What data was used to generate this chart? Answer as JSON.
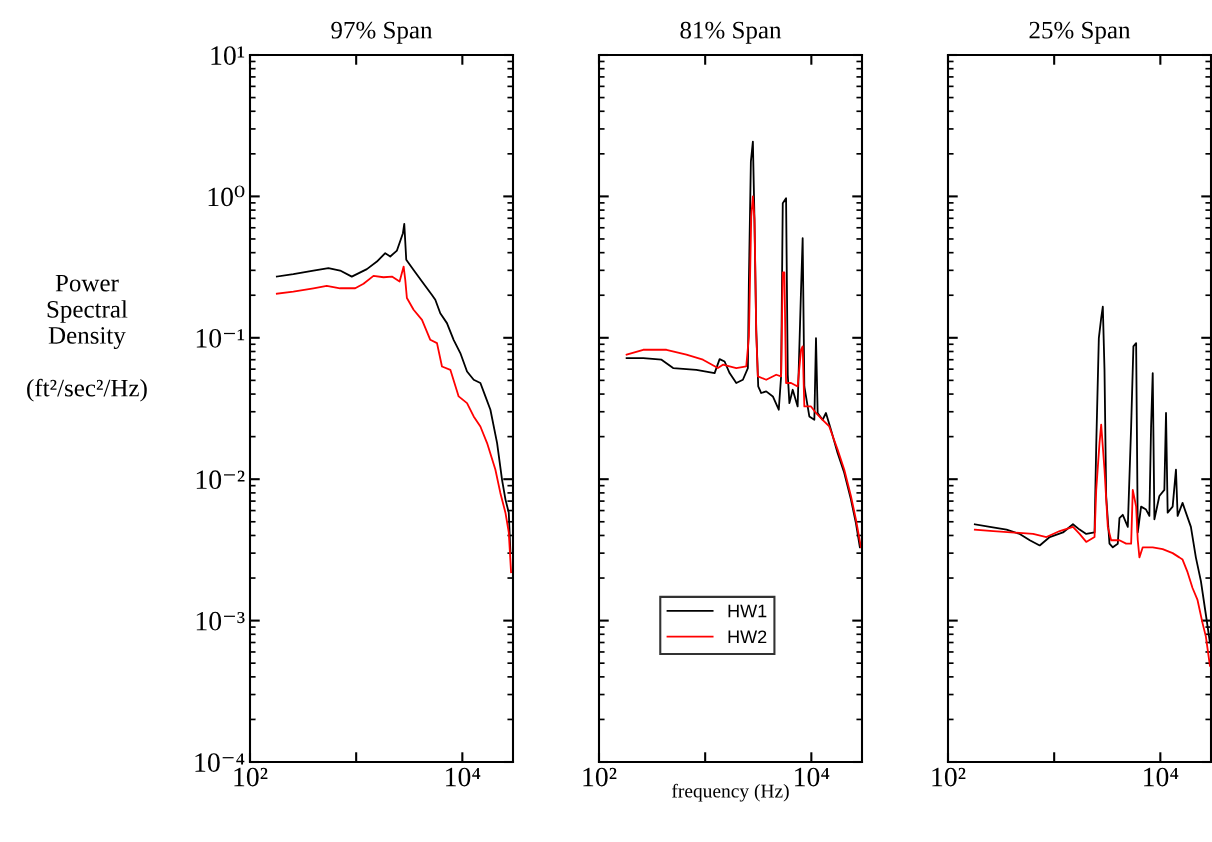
{
  "chart_data": [
    {
      "type": "line",
      "title": "97% Span",
      "ylabel": "Power\nSpectral\nDensity\n\n(ft²/sec²/Hz)",
      "log": "xy",
      "grid": false,
      "legend": false,
      "xlim": [
        100,
        30000
      ],
      "xticks": [
        {
          "value": 100,
          "label": "10²"
        },
        {
          "value": 1000,
          "label": null
        },
        {
          "value": 10000,
          "label": "10⁴"
        }
      ],
      "ylim": [
        0.0001,
        10
      ],
      "yticks": [
        {
          "value": 10,
          "label": "10¹"
        },
        {
          "value": 1,
          "label": "10⁰"
        },
        {
          "value": 0.1,
          "label": "10⁻¹"
        },
        {
          "value": 0.01,
          "label": "10⁻²"
        },
        {
          "value": 0.001,
          "label": "10⁻³"
        },
        {
          "value": 0.0001,
          "label": "10⁻⁴"
        }
      ],
      "series": [
        {
          "color": "#000000",
          "x": [
            179,
            256,
            396,
            548,
            706,
            909,
            1262,
            1568,
            1878,
            2094,
            2421,
            2757,
            2838,
            2963,
            3475,
            4169,
            5176,
            5563,
            6197,
            7160,
            8277,
            9571,
            11070,
            12790,
            14790,
            16490,
            18380,
            21250,
            23660,
            25460,
            27370,
            28380
          ],
          "values": [
            0.271,
            0.282,
            0.299,
            0.311,
            0.299,
            0.271,
            0.306,
            0.346,
            0.397,
            0.376,
            0.414,
            0.549,
            0.639,
            0.356,
            0.302,
            0.25,
            0.201,
            0.186,
            0.149,
            0.127,
            0.0968,
            0.078,
            0.0578,
            0.0505,
            0.0479,
            0.0385,
            0.031,
            0.018,
            0.0099,
            0.0072,
            0.0058,
            0.003
          ]
        },
        {
          "color": "#ff0000",
          "x": [
            179,
            256,
            396,
            528,
            706,
            979,
            1173,
            1456,
            1811,
            2172,
            2564,
            2800,
            2900,
            3005,
            3475,
            4169,
            4990,
            5770,
            6430,
            7710,
            9230,
            11070,
            12790,
            14790,
            17100,
            20460,
            22800,
            25460,
            27370,
            28760
          ],
          "values": [
            0.205,
            0.212,
            0.224,
            0.233,
            0.224,
            0.224,
            0.241,
            0.274,
            0.268,
            0.271,
            0.25,
            0.319,
            0.257,
            0.191,
            0.158,
            0.134,
            0.0968,
            0.0917,
            0.0627,
            0.0594,
            0.0385,
            0.0345,
            0.0278,
            0.0236,
            0.018,
            0.0117,
            0.008,
            0.0058,
            0.0042,
            0.0022
          ]
        }
      ]
    },
    {
      "type": "line",
      "title": "81% Span",
      "xlabel": "frequency (Hz)",
      "log": "xy",
      "grid": false,
      "legend": "bottom",
      "tick_labels": "x",
      "xlim": [
        100,
        30000
      ],
      "xticks": [
        {
          "value": 100,
          "label": "10²"
        },
        {
          "value": 1000,
          "label": null
        },
        {
          "value": 10000,
          "label": "10⁴"
        }
      ],
      "ylim": [
        0.0001,
        10
      ],
      "yticks": [
        {
          "value": 10,
          "label": null
        },
        {
          "value": 1,
          "label": null
        },
        {
          "value": 0.1,
          "label": null
        },
        {
          "value": 0.01,
          "label": null
        },
        {
          "value": 0.001,
          "label": null
        },
        {
          "value": 0.0001,
          "label": null
        }
      ],
      "series": [
        {
          "name": "HW1",
          "color": "#000000",
          "x": [
            182,
            261,
            388,
            499,
            826,
            1227,
            1368,
            1524,
            1698,
            1963,
            2266,
            2525,
            2582,
            2694,
            2814,
            2897,
            3027,
            3160,
            3373,
            3757,
            4339,
            4934,
            5190,
            5380,
            5780,
            5996,
            6213,
            6676,
            7430,
            7996,
            8283,
            8590,
            9570,
            10670,
            11060,
            11470,
            12760,
            13730,
            15300,
            17670,
            20400,
            23590,
            26290,
            28640
          ],
          "values": [
            0.0719,
            0.0719,
            0.07,
            0.0611,
            0.0594,
            0.0563,
            0.0707,
            0.068,
            0.0563,
            0.0479,
            0.0505,
            0.0611,
            0.257,
            1.76,
            2.44,
            0.848,
            0.114,
            0.0453,
            0.0407,
            0.0418,
            0.0385,
            0.031,
            0.0533,
            0.895,
            0.97,
            0.0548,
            0.0345,
            0.0429,
            0.0327,
            0.218,
            0.506,
            0.0453,
            0.0278,
            0.0263,
            0.0995,
            0.0294,
            0.0263,
            0.0294,
            0.0224,
            0.0153,
            0.0111,
            0.0072,
            0.0049,
            0.0033
          ]
        },
        {
          "name": "HW2",
          "color": "#ff0000",
          "x": [
            182,
            261,
            432,
            666,
            953,
            1318,
            1469,
            1698,
            1963,
            2437,
            2582,
            2716,
            2814,
            2917,
            3027,
            3135,
            3757,
            4666,
            5190,
            5380,
            5575,
            5780,
            6441,
            7430,
            7996,
            8283,
            8590,
            9930,
            11060,
            12760,
            14750,
            17670,
            20400,
            23590,
            26290,
            29320
          ],
          "values": [
            0.0759,
            0.0823,
            0.0823,
            0.0759,
            0.07,
            0.0611,
            0.0645,
            0.0627,
            0.0611,
            0.0627,
            0.102,
            0.719,
            1.0,
            0.682,
            0.108,
            0.0533,
            0.0505,
            0.0548,
            0.0533,
            0.29,
            0.29,
            0.0479,
            0.0479,
            0.0453,
            0.0823,
            0.0869,
            0.0327,
            0.0327,
            0.0294,
            0.0263,
            0.0236,
            0.0162,
            0.0117,
            0.0076,
            0.0052,
            0.0033
          ]
        }
      ]
    },
    {
      "type": "line",
      "title": "25% Span",
      "log": "xy",
      "grid": false,
      "legend": false,
      "tick_labels": "x",
      "xlim": [
        100,
        30000
      ],
      "xticks": [
        {
          "value": 100,
          "label": "10²"
        },
        {
          "value": 1000,
          "label": null
        },
        {
          "value": 10000,
          "label": "10⁴"
        }
      ],
      "ylim": [
        0.0001,
        10
      ],
      "yticks": [
        {
          "value": 10,
          "label": null
        },
        {
          "value": 1,
          "label": null
        },
        {
          "value": 0.1,
          "label": null
        },
        {
          "value": 0.01,
          "label": null
        },
        {
          "value": 0.001,
          "label": null
        },
        {
          "value": 0.0001,
          "label": null
        }
      ],
      "series": [
        {
          "color": "#000000",
          "x": [
            179,
            248,
            356,
            474,
            589,
            731,
            908,
            1211,
            1503,
            1735,
            2004,
            2400,
            2489,
            2634,
            2772,
            2872,
            2978,
            3088,
            3319,
            3567,
            3973,
            4120,
            4428,
            4937,
            5309,
            5575,
            5915,
            6129,
            6588,
            7333,
            7882,
            8180,
            8476,
            8790,
            9790,
            10910,
            11310,
            11720,
            13060,
            14030,
            14550,
            16190,
            17410,
            19400,
            21600,
            24100,
            26850,
            29300
          ],
          "values": [
            0.0048,
            0.0046,
            0.0044,
            0.0041,
            0.0037,
            0.0034,
            0.0039,
            0.0042,
            0.0048,
            0.0044,
            0.0041,
            0.0042,
            0.0171,
            0.0995,
            0.138,
            0.166,
            0.0594,
            0.0076,
            0.0035,
            0.0033,
            0.0035,
            0.0053,
            0.0056,
            0.0046,
            0.0236,
            0.0869,
            0.0917,
            0.0042,
            0.0064,
            0.0061,
            0.0055,
            0.0236,
            0.0563,
            0.0052,
            0.0076,
            0.0084,
            0.0294,
            0.0058,
            0.0064,
            0.0117,
            0.0055,
            0.0068,
            0.0058,
            0.0046,
            0.0028,
            0.0019,
            0.0011,
            0.0007
          ]
        },
        {
          "color": "#ff0000",
          "x": [
            179,
            267,
            633,
            845,
            1127,
            1503,
            1735,
            2004,
            2400,
            2489,
            2673,
            2772,
            2978,
            3201,
            3441,
            4120,
            4762,
            5309,
            5500,
            5915,
            6129,
            6353,
            6829,
            8476,
            10520,
            13060,
            15080,
            16190,
            18040,
            20100,
            22390,
            24970,
            26850,
            29300
          ],
          "values": [
            0.0044,
            0.0043,
            0.0041,
            0.0039,
            0.0043,
            0.0046,
            0.0041,
            0.0036,
            0.0039,
            0.0084,
            0.018,
            0.0243,
            0.0117,
            0.0046,
            0.0037,
            0.0037,
            0.0035,
            0.0035,
            0.0084,
            0.0064,
            0.0037,
            0.0028,
            0.0033,
            0.0033,
            0.0032,
            0.003,
            0.0028,
            0.0027,
            0.0022,
            0.0017,
            0.0014,
            0.00096,
            0.00077,
            0.00048
          ]
        }
      ]
    }
  ]
}
